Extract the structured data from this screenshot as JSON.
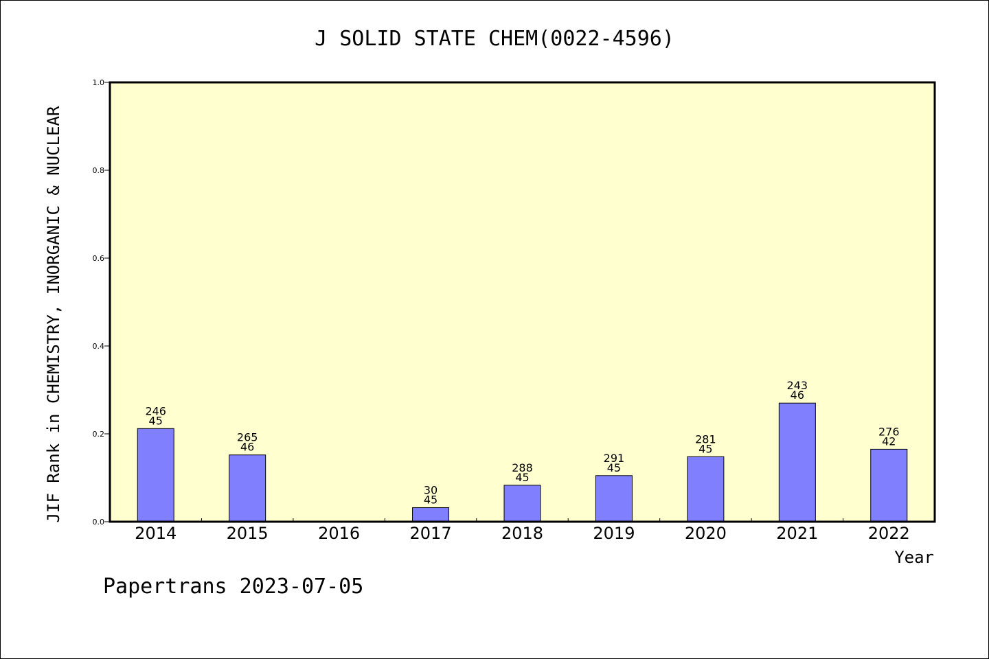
{
  "chart_data": {
    "type": "bar",
    "title": "J SOLID STATE CHEM(0022-4596)",
    "xlabel": "Year",
    "ylabel": "JIF Rank in CHEMISTRY, INORGANIC & NUCLEAR",
    "ylim": [
      0,
      1.0
    ],
    "yticks": [
      "0.0",
      "0.2",
      "0.4",
      "0.6",
      "0.8",
      "1.0"
    ],
    "categories": [
      "2014",
      "2015",
      "2016",
      "2017",
      "2018",
      "2019",
      "2020",
      "2021",
      "2022"
    ],
    "values": [
      0.212,
      0.152,
      null,
      0.032,
      0.083,
      0.105,
      0.148,
      0.27,
      0.165
    ],
    "labels_top": [
      "246",
      "265",
      "",
      "30",
      "288",
      "291",
      "281",
      "243",
      "276"
    ],
    "labels_bottom": [
      "45",
      "46",
      "",
      "45",
      "45",
      "45",
      "45",
      "46",
      "42"
    ],
    "colors": {
      "bar": "#8080ff",
      "plot_bg": "#ffffd0",
      "frame": "#000000"
    },
    "grid": false,
    "legend": "none"
  },
  "footer": "Papertrans 2023-07-05"
}
